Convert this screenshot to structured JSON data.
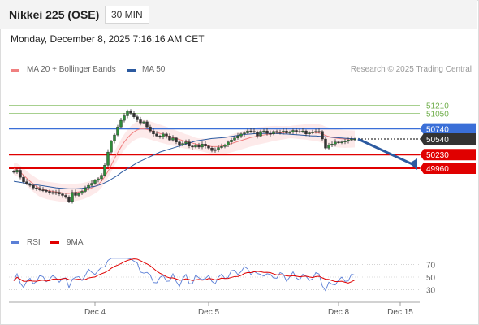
{
  "header": {
    "title": "Nikkei 225 (OSE)",
    "timeframe": "30 MIN"
  },
  "datetime": "Monday, December 8, 2025 7:16:16 AM CET",
  "legend": {
    "bollinger_label": "MA 20 + Bollinger Bands",
    "bollinger_color": "#f08080",
    "ma50_label": "MA 50",
    "ma50_color": "#2c5aa0",
    "copyright": "Research © 2025 Trading Central"
  },
  "rsi_legend": {
    "rsi_label": "RSI",
    "rsi_color": "#5b7fd6",
    "ma_label": "9MA",
    "ma_color": "#e00000"
  },
  "chart_data": {
    "type": "candlestick",
    "price_range": [
      48750,
      51750
    ],
    "x_ticks": [
      "Dec 4",
      "Dec 5",
      "Dec 8",
      "Dec 15"
    ],
    "x_tick_index": [
      25,
      60,
      100,
      119
    ],
    "levels": [
      {
        "value": 51210,
        "label": "51210",
        "role": "target",
        "color": "#8ac06a"
      },
      {
        "value": 51050,
        "label": "51050",
        "role": "target",
        "color": "#8ac06a"
      },
      {
        "value": 50740,
        "label": "50740",
        "role": "resistance",
        "color": "#3a6fd8"
      },
      {
        "value": 50540,
        "label": "50540",
        "role": "last",
        "color": "#333333"
      },
      {
        "value": 50230,
        "label": "50230",
        "role": "support",
        "color": "#e00000"
      },
      {
        "value": 49960,
        "label": "49960",
        "role": "support",
        "color": "#e00000"
      }
    ],
    "closes": [
      49880,
      49920,
      49780,
      49690,
      49650,
      49620,
      49570,
      49560,
      49530,
      49520,
      49500,
      49480,
      49460,
      49480,
      49450,
      49420,
      49380,
      49300,
      49480,
      49420,
      49460,
      49500,
      49570,
      49620,
      49660,
      49720,
      49750,
      49820,
      50020,
      50280,
      50500,
      50620,
      50780,
      50910,
      51000,
      51100,
      51050,
      50980,
      50920,
      50860,
      50880,
      50780,
      50700,
      50640,
      50600,
      50580,
      50640,
      50600,
      50520,
      50560,
      50480,
      50420,
      50450,
      50480,
      50400,
      50380,
      50420,
      50380,
      50440,
      50400,
      50360,
      50310,
      50330,
      50370,
      50390,
      50420,
      50480,
      50520,
      50560,
      50600,
      50640,
      50660,
      50700,
      50690,
      50680,
      50600,
      50690,
      50700,
      50650,
      50640,
      50690,
      50670,
      50680,
      50700,
      50660,
      50680,
      50710,
      50680,
      50690,
      50700,
      50640,
      50660,
      50680,
      50690,
      50690,
      50540,
      50360,
      50420,
      50440,
      50480,
      50470,
      50480,
      50500,
      50520,
      50540,
      50540
    ],
    "ma20": [
      49950,
      49930,
      49880,
      49820,
      49760,
      49700,
      49650,
      49600,
      49560,
      49540,
      49520,
      49510,
      49500,
      49490,
      49480,
      49470,
      49460,
      49460,
      49470,
      49480,
      49490,
      49500,
      49520,
      49540,
      49570,
      49600,
      49640,
      49700,
      49790,
      49900,
      50020,
      50150,
      50270,
      50380,
      50480,
      50560,
      50630,
      50680,
      50720,
      50740,
      50740,
      50730,
      50710,
      50690,
      50670,
      50650,
      50630,
      50610,
      50590,
      50570,
      50550,
      50530,
      50510,
      50490,
      50480,
      50460,
      50440,
      50430,
      50420,
      50410,
      50400,
      50390,
      50390,
      50390,
      50400,
      50410,
      50430,
      50450,
      50470,
      50490,
      50510,
      50530,
      50550,
      50570,
      50580,
      50600,
      50610,
      50620,
      50630,
      50640,
      50650,
      50655,
      50660,
      50665,
      50670,
      50675,
      50680,
      50680,
      50680,
      50680,
      50680,
      50675,
      50670,
      50665,
      50660,
      50640,
      50610,
      50590,
      50570,
      50560,
      50550,
      50545,
      50540,
      50540,
      50540,
      50540
    ],
    "ma50": [
      49700,
      49690,
      49680,
      49670,
      49660,
      49650,
      49640,
      49630,
      49620,
      49610,
      49600,
      49590,
      49580,
      49570,
      49565,
      49560,
      49555,
      49550,
      49550,
      49550,
      49555,
      49560,
      49570,
      49580,
      49590,
      49600,
      49620,
      49640,
      49670,
      49700,
      49740,
      49780,
      49820,
      49870,
      49910,
      49950,
      49990,
      50030,
      50070,
      50100,
      50130,
      50160,
      50190,
      50220,
      50250,
      50280,
      50300,
      50320,
      50340,
      50360,
      50380,
      50400,
      50420,
      50440,
      50460,
      50480,
      50500,
      50510,
      50520,
      50530,
      50540,
      50550,
      50555,
      50560,
      50565,
      50570,
      50580,
      50590,
      50600,
      50610,
      50620,
      50630,
      50635,
      50640,
      50645,
      50650,
      50650,
      50650,
      50650,
      50650,
      50650,
      50650,
      50645,
      50640,
      50640,
      50635,
      50630,
      50625,
      50620,
      50615,
      50610,
      50605,
      50600,
      50600,
      50595,
      50590,
      50585,
      50580,
      50575,
      50570,
      50565,
      50560,
      50555,
      50550,
      50548,
      50545
    ],
    "rsi_ticks": [
      70,
      50,
      30
    ],
    "rsi_range": [
      15,
      85
    ]
  }
}
